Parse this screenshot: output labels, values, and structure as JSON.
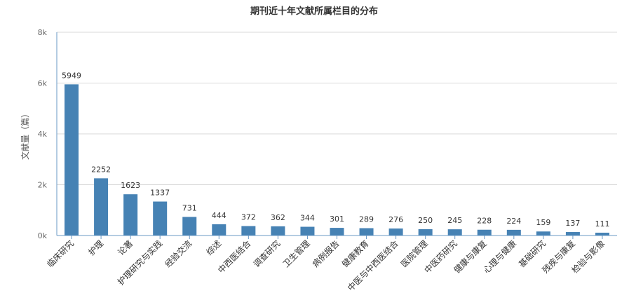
{
  "chart_data": {
    "type": "bar",
    "title": "期刊近十年文献所属栏目的分布",
    "ylabel": "文献量（篇）",
    "xlabel": "",
    "ylim": [
      0,
      8000
    ],
    "yticks": [
      "0k",
      "2k",
      "4k",
      "6k",
      "8k"
    ],
    "grid": true,
    "bar_color": "#4682b4",
    "categories": [
      "临床研究",
      "护理",
      "论著",
      "护理研究与实践",
      "经验交流",
      "综述",
      "中西医结合",
      "调查研究",
      "卫生管理",
      "病例报告",
      "健康教育",
      "中医与中西医结合",
      "医院管理",
      "中医药研究",
      "健康与康复",
      "心理与健康",
      "基础研究",
      "残疾与康复",
      "检验与影像"
    ],
    "values": [
      5949,
      2252,
      1623,
      1337,
      731,
      444,
      372,
      362,
      344,
      301,
      289,
      276,
      250,
      245,
      228,
      224,
      159,
      137,
      111
    ]
  }
}
